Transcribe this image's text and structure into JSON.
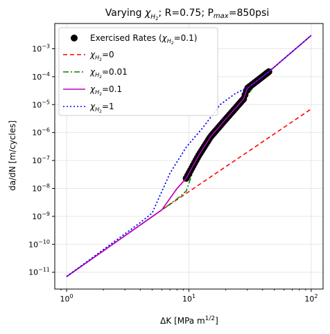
{
  "chart_data": {
    "type": "line",
    "title_parts": {
      "pre": "Varying ",
      "chi": "χ",
      "sub": "H",
      "subsub": "2",
      "post": "; R=0.75; P",
      "psub": "max",
      "tail": "=850psi"
    },
    "xlabel_parts": {
      "main": "ΔK [MPa m",
      "sup": "1/2",
      "end": "]"
    },
    "ylabel": "da/dN [m/cycles]",
    "xscale": "log",
    "yscale": "log",
    "xlim": [
      0.8,
      125
    ],
    "ylim": [
      2.5e-12,
      0.008
    ],
    "grid": true,
    "legend_position": "upper-left",
    "x_ticks": [
      {
        "value": 1,
        "base": "10",
        "exp": "0"
      },
      {
        "value": 10,
        "base": "10",
        "exp": "1"
      },
      {
        "value": 100,
        "base": "10",
        "exp": "2"
      }
    ],
    "y_ticks": [
      {
        "value": 1e-11,
        "base": "10",
        "exp": "−11"
      },
      {
        "value": 1e-10,
        "base": "10",
        "exp": "−10"
      },
      {
        "value": 1e-09,
        "base": "10",
        "exp": "−9"
      },
      {
        "value": 1e-08,
        "base": "10",
        "exp": "−8"
      },
      {
        "value": 1e-07,
        "base": "10",
        "exp": "−7"
      },
      {
        "value": 1e-06,
        "base": "10",
        "exp": "−6"
      },
      {
        "value": 1e-05,
        "base": "10",
        "exp": "−5"
      },
      {
        "value": 0.0001,
        "base": "10",
        "exp": "−4"
      },
      {
        "value": 0.001,
        "base": "10",
        "exp": "−3"
      }
    ],
    "series": [
      {
        "name_main": "χ",
        "name_sub": "H",
        "name_subsub": "2",
        "name_value": "=0",
        "color": "#ff0000",
        "dash": "6,4",
        "points": [
          [
            1,
            7e-12
          ],
          [
            6,
            1.7e-09
          ],
          [
            100,
            7e-06
          ]
        ]
      },
      {
        "name_main": "χ",
        "name_sub": "H",
        "name_subsub": "2",
        "name_value": "=0.01",
        "color": "#008000",
        "dash": "8,3,2,3",
        "points": [
          [
            1,
            7e-12
          ],
          [
            6,
            1.7e-09
          ],
          [
            8,
            4.2e-09
          ],
          [
            9.5,
            8e-09
          ],
          [
            12,
            1.5e-07
          ],
          [
            15,
            7e-07
          ],
          [
            20,
            3e-06
          ],
          [
            28,
            1.4e-05
          ],
          [
            33,
            3.8e-05
          ],
          [
            45,
            0.00015
          ],
          [
            100,
            0.003
          ]
        ]
      },
      {
        "name_main": "χ",
        "name_sub": "H",
        "name_subsub": "2",
        "name_value": "=0.1",
        "color": "#bf00bf",
        "dash": "",
        "points": [
          [
            1,
            7e-12
          ],
          [
            6,
            1.7e-09
          ],
          [
            8,
            1e-08
          ],
          [
            9.5,
            2.3e-08
          ],
          [
            12,
            1.5e-07
          ],
          [
            15,
            7e-07
          ],
          [
            20,
            3e-06
          ],
          [
            28,
            1.6e-05
          ],
          [
            30,
            3.8e-05
          ],
          [
            45,
            0.00015
          ],
          [
            100,
            0.003
          ]
        ]
      },
      {
        "name_main": "χ",
        "name_sub": "H",
        "name_subsub": "2",
        "name_value": "=1",
        "color": "#0000ff",
        "dash": "2,3",
        "points": [
          [
            1,
            7e-12
          ],
          [
            4,
            6e-10
          ],
          [
            5,
            1.3e-09
          ],
          [
            7,
            3.5e-08
          ],
          [
            9.5,
            3e-07
          ],
          [
            13,
            1.5e-06
          ],
          [
            18,
            1e-05
          ],
          [
            24,
            2.5e-05
          ],
          [
            33,
            5e-05
          ],
          [
            45,
            0.00015
          ],
          [
            100,
            0.003
          ]
        ]
      }
    ],
    "scatter": {
      "name_main": "Exercised Rates (",
      "name_chi": "χ",
      "name_sub": "H",
      "name_subsub": "2",
      "name_end": "=0.1)",
      "color": "#000000",
      "x_range": [
        9.5,
        45
      ],
      "count": 60
    },
    "colors": {
      "grid": "#e6e6e6",
      "axis": "#000000"
    }
  }
}
